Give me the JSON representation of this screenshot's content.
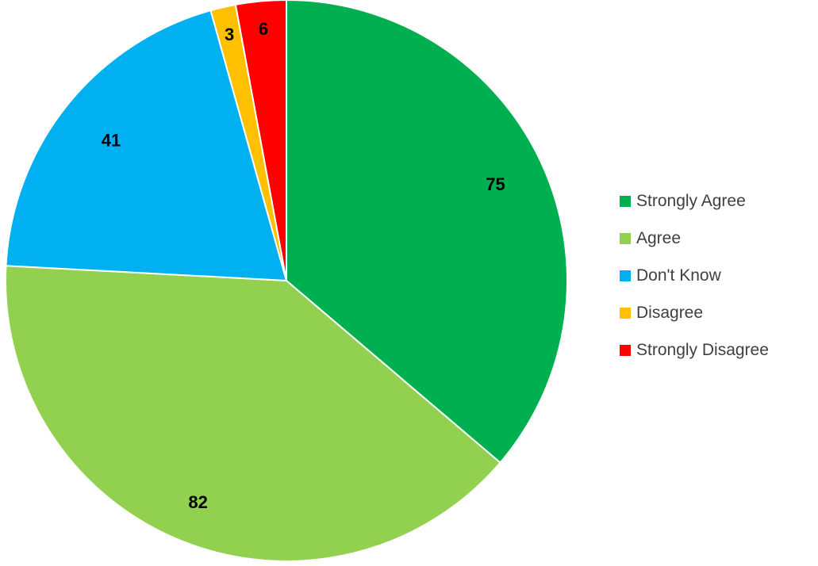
{
  "chart_data": {
    "type": "pie",
    "title": "",
    "categories": [
      "Strongly Agree",
      "Agree",
      "Don't Know",
      "Disagree",
      "Strongly Disagree"
    ],
    "values": [
      75,
      82,
      41,
      3,
      6
    ],
    "colors": [
      "#00B050",
      "#92D050",
      "#00B0F0",
      "#FFC000",
      "#FF0000"
    ],
    "data_labels": [
      "75",
      "82",
      "41",
      "3",
      "6"
    ],
    "start_angle": "12 o'clock",
    "direction": "clockwise",
    "legend": {
      "position": "right",
      "entries": [
        "Strongly Agree",
        "Agree",
        "Don't Know",
        "Disagree",
        "Strongly Disagree"
      ]
    }
  }
}
